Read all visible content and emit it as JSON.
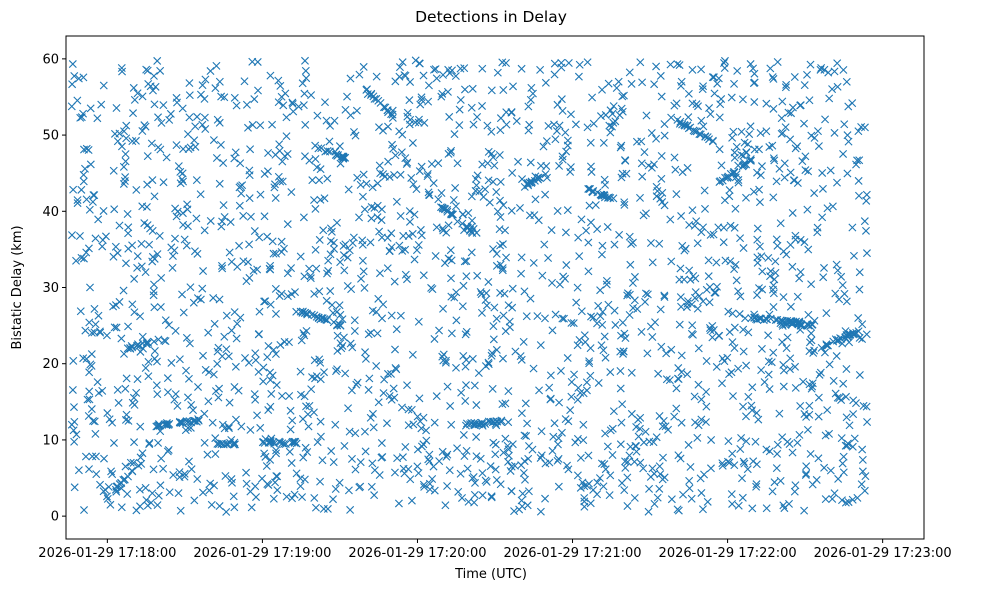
{
  "chart_data": {
    "type": "scatter",
    "title": "Detections in Delay",
    "xlabel": "Time (UTC)",
    "ylabel": "Bistatic Delay (km)",
    "marker": "x",
    "color": "#1f77b4",
    "x_unit": "seconds since 2026-01-29 17:18:00",
    "xlim": [
      -16,
      316
    ],
    "ylim": [
      -3,
      63
    ],
    "x_ticks": [
      {
        "value": 0,
        "label": "2026-01-29 17:18:00"
      },
      {
        "value": 60,
        "label": "2026-01-29 17:19:00"
      },
      {
        "value": 120,
        "label": "2026-01-29 17:20:00"
      },
      {
        "value": 180,
        "label": "2026-01-29 17:21:00"
      },
      {
        "value": 240,
        "label": "2026-01-29 17:22:00"
      },
      {
        "value": 300,
        "label": "2026-01-29 17:23:00"
      }
    ],
    "y_ticks": [
      {
        "value": 0,
        "label": "0"
      },
      {
        "value": 10,
        "label": "10"
      },
      {
        "value": 20,
        "label": "20"
      },
      {
        "value": 30,
        "label": "30"
      },
      {
        "value": 40,
        "label": "40"
      },
      {
        "value": 50,
        "label": "50"
      },
      {
        "value": 60,
        "label": "60"
      }
    ],
    "data_range": {
      "x": [
        -14,
        294
      ],
      "y": [
        0.5,
        59.8
      ]
    },
    "point_count": 2400,
    "tracks": [
      {
        "x_start": 3,
        "x_end": 13,
        "y_start": 3.5,
        "y_end": 7
      },
      {
        "x_start": 8,
        "x_end": 18,
        "y_start": 22,
        "y_end": 23
      },
      {
        "x_start": 17,
        "x_end": 36,
        "y_start": 11.8,
        "y_end": 12.6
      },
      {
        "x_start": 42,
        "x_end": 50,
        "y_start": 9.5,
        "y_end": 9.5
      },
      {
        "x_start": 60,
        "x_end": 74,
        "y_start": 9.6,
        "y_end": 9.6
      },
      {
        "x_start": 74,
        "x_end": 90,
        "y_start": 27,
        "y_end": 25
      },
      {
        "x_start": 80,
        "x_end": 92,
        "y_start": 48.5,
        "y_end": 47
      },
      {
        "x_start": 100,
        "x_end": 112,
        "y_start": 56,
        "y_end": 52
      },
      {
        "x_start": 128,
        "x_end": 142,
        "y_start": 41,
        "y_end": 37
      },
      {
        "x_start": 138,
        "x_end": 153,
        "y_start": 12,
        "y_end": 12.4
      },
      {
        "x_start": 160,
        "x_end": 170,
        "y_start": 43,
        "y_end": 45
      },
      {
        "x_start": 185,
        "x_end": 200,
        "y_start": 43,
        "y_end": 41
      },
      {
        "x_start": 220,
        "x_end": 235,
        "y_start": 52,
        "y_end": 49
      },
      {
        "x_start": 238,
        "x_end": 250,
        "y_start": 44,
        "y_end": 47
      },
      {
        "x_start": 248,
        "x_end": 268,
        "y_start": 26,
        "y_end": 25.4
      },
      {
        "x_start": 260,
        "x_end": 274,
        "y_start": 25.3,
        "y_end": 25
      },
      {
        "x_start": 275,
        "x_end": 292,
        "y_start": 22,
        "y_end": 24.5
      }
    ]
  }
}
